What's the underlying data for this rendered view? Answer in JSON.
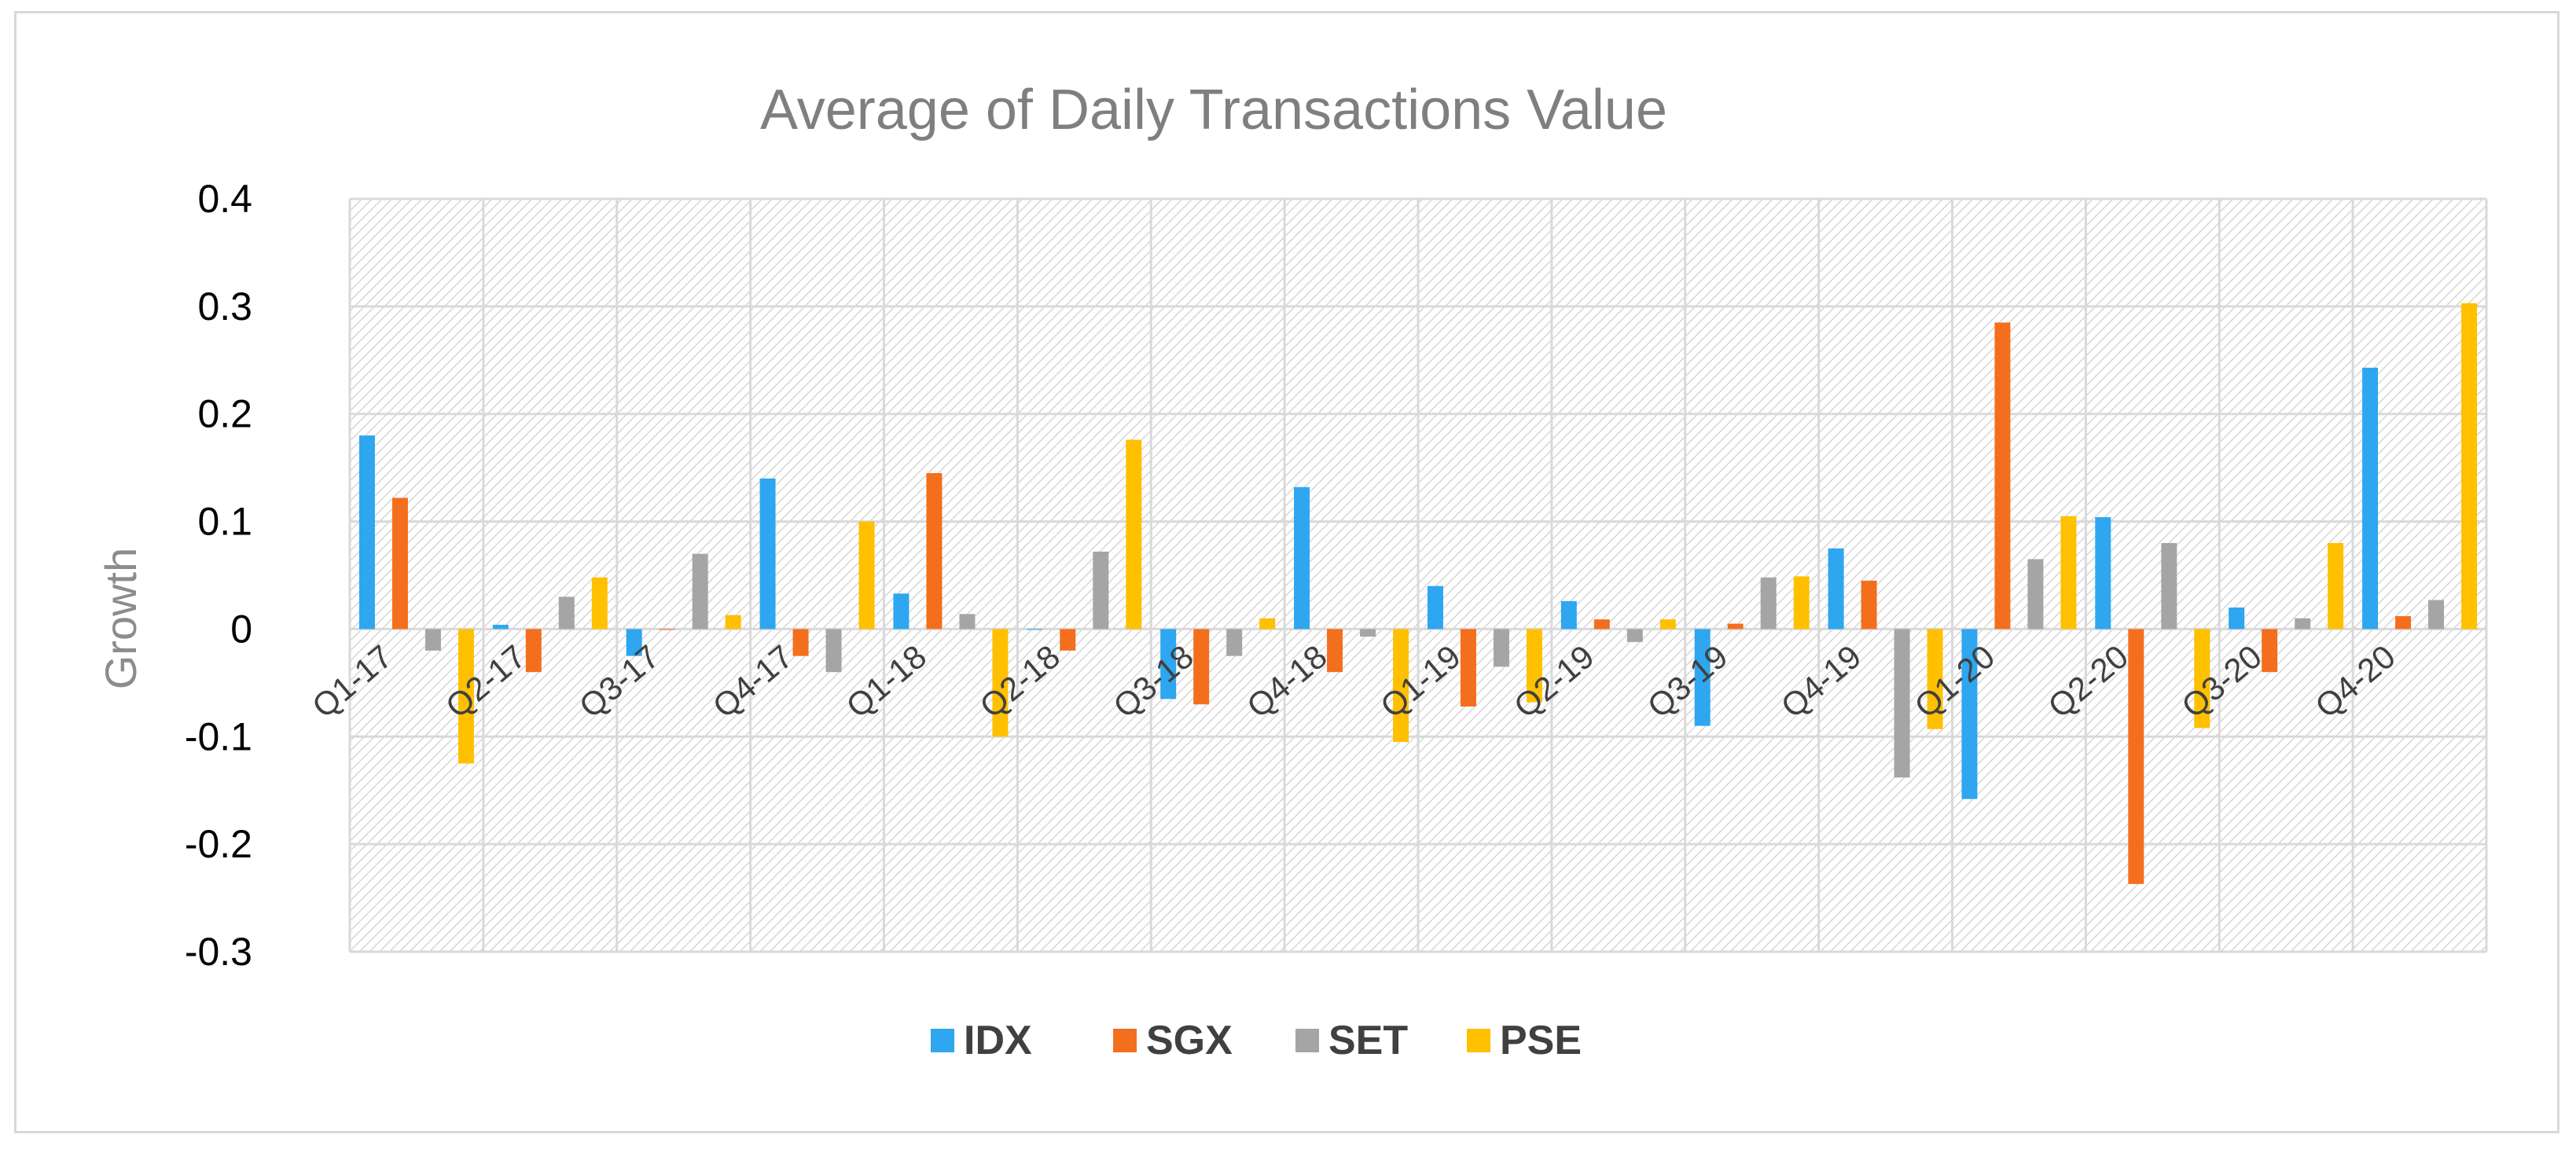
{
  "chart_data": {
    "type": "bar",
    "title": "Average of Daily Transactions Value",
    "xlabel": "",
    "ylabel": "Growth",
    "ylim": [
      -0.3,
      0.4
    ],
    "yticks": [
      "0.4",
      "0.3",
      "0.2",
      "0.1",
      "0",
      "-0.1",
      "-0.2",
      "-0.3"
    ],
    "ytick_values": [
      0.4,
      0.3,
      0.2,
      0.1,
      0,
      -0.1,
      -0.2,
      -0.3
    ],
    "legend_position": "bottom",
    "categories": [
      "Q1-17",
      "Q2-17",
      "Q3-17",
      "Q4-17",
      "Q1-18",
      "Q2-18",
      "Q3-18",
      "Q4-18",
      "Q1-19",
      "Q2-19",
      "Q3-19",
      "Q4-19",
      "Q1-20",
      "Q2-20",
      "Q3-20",
      "Q4-20"
    ],
    "series": [
      {
        "name": "IDX",
        "color": "#2ea6f0",
        "values": [
          0.18,
          0.004,
          -0.025,
          0.14,
          0.033,
          0,
          -0.065,
          0.132,
          0.04,
          0.026,
          -0.09,
          0.075,
          -0.158,
          0.104,
          0.02,
          0.243
        ]
      },
      {
        "name": "SGX",
        "color": "#f36f1e",
        "values": [
          0.122,
          -0.04,
          0,
          -0.025,
          0.145,
          -0.02,
          -0.07,
          -0.04,
          -0.072,
          0.009,
          0.005,
          0.045,
          0.285,
          -0.237,
          -0.04,
          0.012
        ]
      },
      {
        "name": "SET",
        "color": "#a5a5a5",
        "values": [
          -0.02,
          0.03,
          0.07,
          -0.04,
          0.014,
          0.072,
          -0.025,
          -0.007,
          -0.035,
          -0.012,
          0.048,
          -0.138,
          0.065,
          0.08,
          0.01,
          0.027
        ]
      },
      {
        "name": "PSE",
        "color": "#ffc000",
        "values": [
          -0.125,
          0.048,
          0.013,
          0.1,
          -0.1,
          0.176,
          0.01,
          -0.105,
          -0.068,
          0.009,
          0.049,
          -0.093,
          0.105,
          -0.092,
          0.08,
          0.303
        ]
      }
    ]
  }
}
